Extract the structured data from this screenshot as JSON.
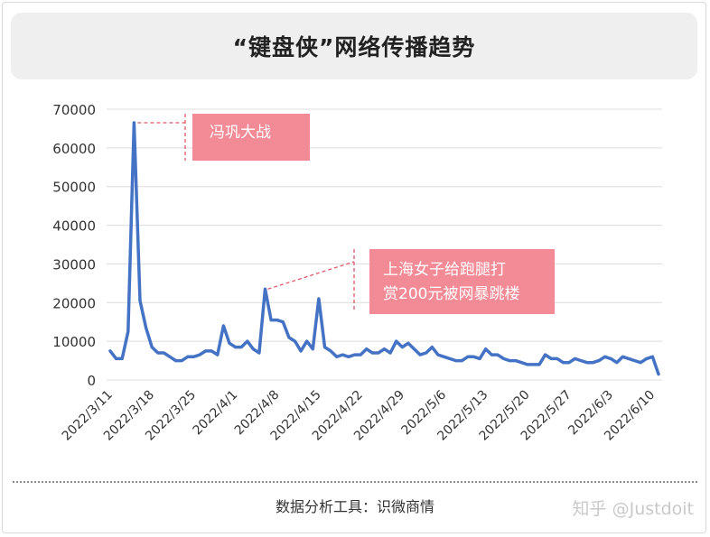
{
  "header": {
    "title": "“键盘侠”网络传播趋势"
  },
  "footer": {
    "source": "数据分析工具：识微商情",
    "watermark": "知乎 @Justdoit"
  },
  "colors": {
    "line": "#4472c4",
    "annotation_fill": "#f28b96",
    "annotation_text": "#ffffff",
    "annotation_dash": "#e05a6a",
    "grid": "#dcdcdc"
  },
  "chart_data": {
    "type": "line",
    "title": "“键盘侠”网络传播趋势",
    "xlabel": "",
    "ylabel": "",
    "ylim": [
      0,
      70000
    ],
    "yticks": [
      0,
      10000,
      20000,
      30000,
      40000,
      50000,
      60000,
      70000
    ],
    "grid": true,
    "x_tick_labels": [
      "2022/3/11",
      "2022/3/18",
      "2022/3/25",
      "2022/4/1",
      "2022/4/8",
      "2022/4/15",
      "2022/4/22",
      "2022/4/29",
      "2022/5/6",
      "2022/5/13",
      "2022/5/20",
      "2022/5/27",
      "2022/6/3",
      "2022/6/10"
    ],
    "series": [
      {
        "values": [
          7500,
          5500,
          5500,
          12500,
          66500,
          20500,
          13500,
          8500,
          7000,
          7000,
          6000,
          5000,
          5000,
          6000,
          6000,
          6500,
          7500,
          7500,
          6500,
          14000,
          9500,
          8500,
          8500,
          10000,
          8000,
          7000,
          23500,
          15500,
          15500,
          15000,
          11000,
          10000,
          7500,
          10000,
          8000,
          21000,
          8500,
          7500,
          6000,
          6500,
          6000,
          6500,
          6500,
          8000,
          7000,
          7000,
          8000,
          7000,
          10000,
          8500,
          9500,
          8000,
          6500,
          7000,
          8500,
          6500,
          6000,
          5500,
          5000,
          5000,
          6000,
          6000,
          5500,
          8000,
          6500,
          6500,
          5500,
          5000,
          5000,
          4500,
          4000,
          4000,
          4000,
          6500,
          5500,
          5500,
          4500,
          4500,
          5500,
          5000,
          4500,
          4500,
          5000,
          6000,
          5500,
          4500,
          6000,
          5500,
          5000,
          4500,
          5500,
          6000,
          1500
        ]
      }
    ],
    "annotations": [
      {
        "text": "冯巩大战"
      },
      {
        "lines": [
          "上海女子给跑腿打",
          "赏200元被网暴跳楼"
        ]
      }
    ]
  }
}
